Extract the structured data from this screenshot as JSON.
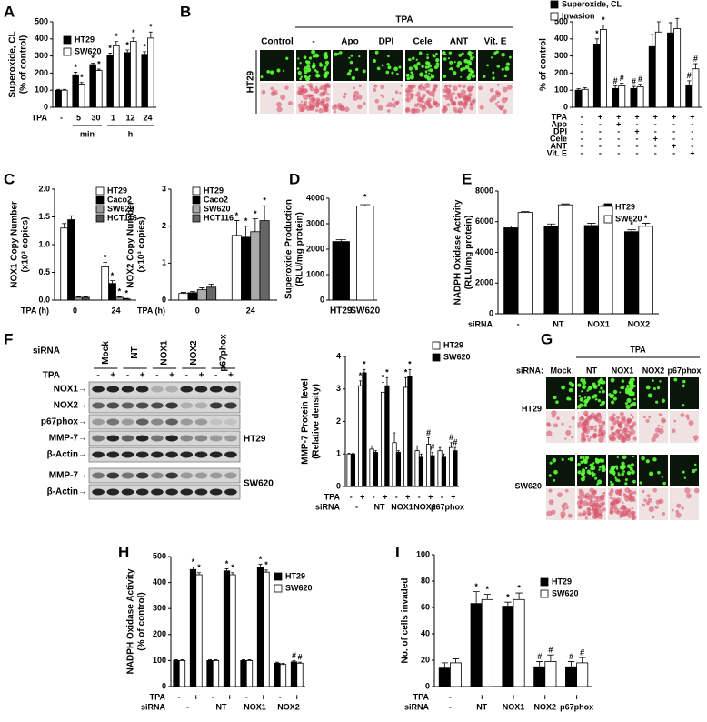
{
  "chart_data": [
    {
      "type": "bar",
      "panel": "A",
      "ylabel": [
        "Superoxide, CL",
        "(% of control)"
      ],
      "ylim": [
        0,
        500
      ],
      "yticks": [
        0,
        100,
        200,
        300,
        400,
        500
      ],
      "series": [
        {
          "name": "HT29",
          "color": "#000000",
          "values": [
            100,
            190,
            250,
            305,
            320,
            310
          ],
          "errors": [
            5,
            15,
            8,
            12,
            15,
            15
          ],
          "marks": [
            null,
            "*",
            "*",
            "*",
            "*",
            "*"
          ]
        },
        {
          "name": "SW620",
          "color": "#ffffff",
          "values": [
            100,
            135,
            215,
            360,
            385,
            405
          ],
          "errors": [
            5,
            10,
            8,
            25,
            20,
            35
          ],
          "marks": [
            null,
            "*",
            "*",
            "*",
            "*",
            "*"
          ]
        }
      ],
      "rows": [
        {
          "label": "TPA",
          "cells": [
            "-",
            "5",
            "30",
            "1",
            "12",
            "24"
          ]
        }
      ],
      "group_labels": [
        "min",
        "h"
      ]
    },
    {
      "type": "bar",
      "ylabel": [
        "% of control"
      ],
      "ylim": [
        0,
        500
      ],
      "yticks": [
        0,
        100,
        200,
        300,
        400,
        500
      ],
      "series": [
        {
          "name": "Superoxide, CL",
          "color": "#000000",
          "values": [
            100,
            370,
            110,
            110,
            355,
            435,
            130
          ],
          "errors": [
            8,
            30,
            15,
            12,
            70,
            60,
            25
          ],
          "marks": [
            null,
            "*",
            "#",
            "#",
            null,
            null,
            "#"
          ]
        },
        {
          "name": "Invasion",
          "color": "#ffffff",
          "values": [
            105,
            455,
            125,
            120,
            440,
            460,
            225
          ],
          "errors": [
            10,
            25,
            15,
            15,
            60,
            60,
            30
          ],
          "marks": [
            null,
            "*",
            "#",
            "#",
            null,
            null,
            "#"
          ]
        }
      ],
      "rows": [
        {
          "label": "TPA",
          "cells": [
            "-",
            "+",
            "+",
            "+",
            "+",
            "+",
            "+"
          ]
        },
        {
          "label": "Apo",
          "cells": [
            "-",
            "-",
            "+",
            "-",
            "-",
            "-",
            "-"
          ]
        },
        {
          "label": "DPI",
          "cells": [
            "-",
            "-",
            "-",
            "+",
            "-",
            "-",
            "-"
          ]
        },
        {
          "label": "Cele",
          "cells": [
            "-",
            "-",
            "-",
            "-",
            "+",
            "-",
            "-"
          ]
        },
        {
          "label": "ANT",
          "cells": [
            "-",
            "-",
            "-",
            "-",
            "-",
            "+",
            "-"
          ]
        },
        {
          "label": "Vit. E",
          "cells": [
            "-",
            "-",
            "-",
            "-",
            "-",
            "-",
            "+"
          ]
        }
      ]
    },
    {
      "type": "bar",
      "panel": "C",
      "ylabel": [
        "NOX1 Copy Number",
        "(x10³ copies)"
      ],
      "ylim": [
        0,
        2
      ],
      "yticks": [
        {
          "value": 0,
          "label": "0.0"
        },
        0.5,
        {
          "value": 1,
          "label": "1.0"
        },
        1.5,
        {
          "value": 2,
          "label": "2.0"
        }
      ],
      "series": [
        {
          "name": "HT29",
          "color": "#ffffff",
          "values": [
            1.3,
            0.6
          ],
          "errors": [
            0.08,
            0.08
          ],
          "marks": [
            null,
            "*"
          ]
        },
        {
          "name": "Caco2",
          "color": "#000000",
          "values": [
            1.45,
            0.3
          ],
          "errors": [
            0.07,
            0.05
          ],
          "marks": [
            null,
            "*"
          ]
        },
        {
          "name": "SW620",
          "color": "#999999",
          "values": [
            0.05,
            0.05
          ],
          "errors": [
            0.01,
            0.01
          ],
          "marks": [
            null,
            "*"
          ]
        },
        {
          "name": "HCT116",
          "color": "#555555",
          "values": [
            0.05,
            0.02
          ],
          "errors": [
            0.01,
            0.01
          ],
          "marks": [
            null,
            "*"
          ]
        }
      ],
      "rows": [
        {
          "label": "TPA (h)",
          "cells": [
            "0",
            "24"
          ]
        }
      ]
    },
    {
      "type": "bar",
      "ylabel": [
        "NOX2 Copy Number",
        "(x10³ copies)"
      ],
      "ylim": [
        0,
        3
      ],
      "yticks": [
        0,
        1,
        2,
        3
      ],
      "series": [
        {
          "name": "HT29",
          "color": "#ffffff",
          "values": [
            0.18,
            1.75
          ],
          "errors": [
            0.03,
            0.4
          ],
          "marks": [
            null,
            "*"
          ]
        },
        {
          "name": "Caco2",
          "color": "#000000",
          "values": [
            0.2,
            1.7
          ],
          "errors": [
            0.03,
            0.3
          ],
          "marks": [
            null,
            "*"
          ]
        },
        {
          "name": "SW620",
          "color": "#aaaaaa",
          "values": [
            0.28,
            1.85
          ],
          "errors": [
            0.05,
            0.35
          ],
          "marks": [
            null,
            "*"
          ]
        },
        {
          "name": "HCT116",
          "color": "#666666",
          "values": [
            0.35,
            2.15
          ],
          "errors": [
            0.08,
            0.4
          ],
          "marks": [
            null,
            "*"
          ]
        }
      ],
      "rows": [
        {
          "label": "TPA (h)",
          "cells": [
            "0",
            "24"
          ]
        }
      ]
    },
    {
      "type": "bar",
      "panel": "D",
      "ylabel": [
        "Superoxide Production",
        "(RLU/mg protein)"
      ],
      "ylim": [
        0,
        4000
      ],
      "yticks": [
        0,
        1000,
        2000,
        3000,
        4000
      ],
      "categories": [
        "HT29",
        "SW620"
      ],
      "series": [
        {
          "colors": [
            "#000000",
            "#ffffff"
          ],
          "values": [
            2300,
            3700
          ],
          "errors": [
            80,
            50
          ],
          "marks": [
            null,
            "*"
          ]
        }
      ]
    },
    {
      "type": "bar",
      "panel": "E",
      "ylabel": [
        "NADPH Oxidase Activity",
        "(RLU/mg protein)"
      ],
      "ylim": [
        0,
        8000
      ],
      "yticks": [
        0,
        2000,
        4000,
        6000,
        8000
      ],
      "series": [
        {
          "name": "HT29",
          "color": "#000000",
          "values": [
            5600,
            5700,
            5750,
            5350
          ],
          "errors": [
            120,
            150,
            150,
            120
          ],
          "marks": [
            null,
            null,
            null,
            "*"
          ]
        },
        {
          "name": "SW620",
          "color": "#ffffff",
          "values": [
            6600,
            7100,
            7000,
            5700
          ],
          "errors": [
            60,
            60,
            50,
            200
          ],
          "marks": [
            null,
            null,
            null,
            "*"
          ]
        }
      ],
      "rows": [
        {
          "label": "siRNA",
          "cells": [
            "-",
            "NT",
            "NOX1",
            "NOX2"
          ]
        }
      ]
    },
    {
      "type": "bar",
      "ylabel": [
        "MMP-7 Protein level",
        "(Relative density)"
      ],
      "ylim": [
        0,
        4
      ],
      "yticks": [
        0,
        1,
        2,
        3,
        4
      ],
      "series": [
        {
          "name": "HT29",
          "color": "#ffffff",
          "values": [
            1,
            3.1,
            1.15,
            2.9,
            1.35,
            3.05,
            1.1,
            1.3,
            1.1,
            1.2
          ],
          "errors": [
            0.02,
            0.15,
            0.1,
            0.3,
            0.3,
            0.3,
            0.15,
            0.2,
            0.1,
            0.15
          ],
          "marks": [
            null,
            "*",
            null,
            "*",
            null,
            "*",
            null,
            "#",
            null,
            "#"
          ]
        },
        {
          "name": "SW620",
          "color": "#000000",
          "values": [
            1,
            3.5,
            1.05,
            3.1,
            1.05,
            3.4,
            0.9,
            0.95,
            0.9,
            1.1
          ],
          "errors": [
            0.02,
            0.1,
            0.05,
            0.25,
            0.05,
            0.2,
            0.1,
            0.1,
            0.1,
            0.1
          ],
          "marks": [
            null,
            "*",
            null,
            "*",
            null,
            "*",
            null,
            "#",
            null,
            "#"
          ]
        }
      ],
      "rows": [
        {
          "label": "TPA",
          "cells": [
            "-",
            "+",
            "-",
            "+",
            "-",
            "+",
            "-",
            "+",
            "-",
            "+"
          ]
        },
        {
          "label": "siRNA",
          "cells": [
            "-",
            "NT",
            "NOX1",
            "NOX2",
            "p67phox"
          ]
        }
      ]
    },
    {
      "type": "bar",
      "panel": "H",
      "ylabel": [
        "NADPH Oxidase Activity",
        "(% of control)"
      ],
      "ylim": [
        0,
        500
      ],
      "yticks": [
        0,
        100,
        200,
        300,
        400,
        500
      ],
      "series": [
        {
          "name": "HT29",
          "color": "#000000",
          "values": [
            100,
            450,
            100,
            445,
            100,
            460,
            90,
            95
          ],
          "errors": [
            3,
            10,
            3,
            8,
            3,
            10,
            4,
            4
          ],
          "marks": [
            null,
            "*",
            null,
            "*",
            null,
            "*",
            null,
            "#"
          ]
        },
        {
          "name": "SW620",
          "color": "#ffffff",
          "values": [
            100,
            430,
            100,
            430,
            100,
            440,
            85,
            90
          ],
          "errors": [
            3,
            8,
            3,
            8,
            3,
            8,
            4,
            4
          ],
          "marks": [
            null,
            "*",
            null,
            "*",
            null,
            "*",
            null,
            "#"
          ]
        }
      ],
      "rows": [
        {
          "label": "TPA",
          "cells": [
            "-",
            "+",
            "-",
            "+",
            "-",
            "+",
            "-",
            "+"
          ]
        },
        {
          "label": "siRNA",
          "cells": [
            "-",
            "NT",
            "NOX1",
            "NOX2"
          ]
        }
      ]
    },
    {
      "type": "bar",
      "panel": "I",
      "ylabel": [
        "No. of cells invaded"
      ],
      "ylim": [
        0,
        100
      ],
      "yticks": [
        0,
        20,
        40,
        60,
        80,
        100
      ],
      "series": [
        {
          "name": "HT29",
          "color": "#000000",
          "values": [
            14,
            63,
            61,
            15,
            15
          ],
          "errors": [
            4,
            9,
            3,
            4,
            4
          ],
          "marks": [
            null,
            "*",
            "*",
            "#",
            "#"
          ]
        },
        {
          "name": "SW620",
          "color": "#ffffff",
          "values": [
            18,
            66,
            66,
            19,
            18
          ],
          "errors": [
            3,
            4,
            5,
            5,
            4
          ],
          "marks": [
            null,
            "*",
            "*",
            "#",
            "#"
          ]
        }
      ],
      "rows": [
        {
          "label": "TPA",
          "cells": [
            "-",
            "+",
            "+",
            "+",
            "+"
          ]
        },
        {
          "label": "siRNA",
          "cells": [
            "-",
            "NT",
            "NOX1",
            "NOX2",
            "p67phox"
          ]
        }
      ]
    }
  ],
  "micrographs_b": {
    "panel": "B",
    "header": "TPA",
    "columns": [
      "Control",
      "-",
      "Apo",
      "DPI",
      "Cele",
      "ANT",
      "Vit. E"
    ],
    "rows": [
      "HT29"
    ]
  },
  "blot_f": {
    "panel": "F",
    "lane_title": "siRNA",
    "lane_groups": [
      "Mock",
      "NT",
      "NOX1",
      "NOX2",
      "p67phox"
    ],
    "treatment": "TPA",
    "treatment_cells": [
      "-",
      "+",
      "-",
      "+",
      "-",
      "+",
      "-",
      "+",
      "-",
      "+"
    ],
    "bands": [
      "NOX1→",
      "NOX2→",
      "p67phox→",
      "MMP-7→",
      "β-Actin→",
      "MMP-7→",
      "β-Actin→"
    ],
    "cell_lines": [
      "HT29",
      "SW620"
    ]
  },
  "micrographs_g": {
    "panel": "G",
    "header": "TPA",
    "column_title": "siRNA:",
    "columns": [
      "Mock",
      "NT",
      "NOX1",
      "NOX2",
      "p67phox"
    ],
    "rows": [
      "HT29",
      "SW620"
    ]
  }
}
